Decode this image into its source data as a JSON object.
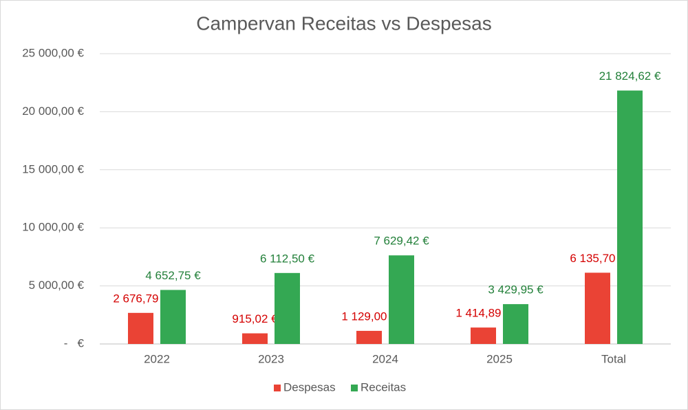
{
  "chart_data": {
    "type": "bar",
    "title": "Campervan Receitas vs Despesas",
    "categories": [
      "2022",
      "2023",
      "2024",
      "2025",
      "Total"
    ],
    "series": [
      {
        "name": "Despesas",
        "color": "#ea4335",
        "values": [
          2676.79,
          915.02,
          1129.0,
          1414.89,
          6135.7
        ],
        "value_labels": [
          "2 676,79 €",
          "915,02 €",
          "1 129,00 €",
          "1 414,89 €",
          "6 135,70 €"
        ]
      },
      {
        "name": "Receitas",
        "color": "#34a853",
        "values": [
          4652.75,
          6112.5,
          7629.42,
          3429.95,
          21824.62
        ],
        "value_labels": [
          "4 652,75 €",
          "6 112,50 €",
          "7 629,42 €",
          "3 429,95 €",
          "21 824,62 €"
        ]
      }
    ],
    "ylim": [
      0,
      25000
    ],
    "yticks": [
      {
        "value": 0,
        "label": "-   €"
      },
      {
        "value": 5000,
        "label": "5 000,00 €"
      },
      {
        "value": 10000,
        "label": "10 000,00 €"
      },
      {
        "value": 15000,
        "label": "15 000,00 €"
      },
      {
        "value": 20000,
        "label": "20 000,00 €"
      },
      {
        "value": 25000,
        "label": "25 000,00 €"
      }
    ],
    "grid": true,
    "legend": "bottom"
  }
}
